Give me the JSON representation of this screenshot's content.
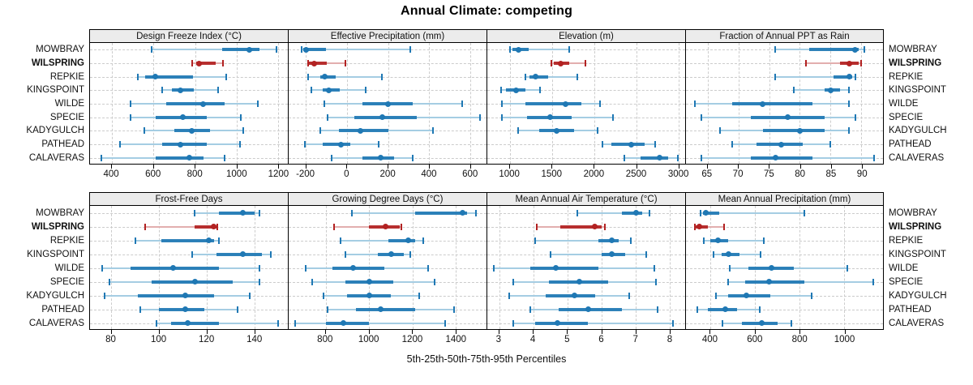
{
  "title": "Annual Climate: competing",
  "footer": "5th-25th-50th-75th-95th Percentiles",
  "colors": {
    "blue": "#1f78b4",
    "blue_light": "#a5cde3",
    "red": "#b22222",
    "red_light": "#e2aeae",
    "strip_bg": "#ececec",
    "grid": "#cccccc",
    "border": "#000000"
  },
  "chart_data": {
    "type": "dotplot-percentiles",
    "percentile_labels": [
      "5th",
      "25th",
      "50th",
      "75th",
      "95th"
    ],
    "sites": [
      "MOWBRAY",
      "WILSPRING",
      "REPKIE",
      "KINGSPOINT",
      "WILDE",
      "SPECIE",
      "KADYGULCH",
      "PATHEAD",
      "CALAVERAS"
    ],
    "highlight_site": "WILSPRING",
    "grid_layout": {
      "rows": 2,
      "cols": 4,
      "legend": "none",
      "gridlines": "dashed"
    },
    "panels": [
      {
        "title": "Design Freeze Index (°C)",
        "xlim": [
          295,
          1245
        ],
        "ticks": [
          400,
          600,
          800,
          1000,
          1200
        ],
        "values": {
          "MOWBRAY": [
            590,
            930,
            1060,
            1110,
            1190
          ],
          "WILSPRING": [
            785,
            805,
            818,
            900,
            935
          ],
          "REPKIE": [
            525,
            560,
            610,
            790,
            950
          ],
          "KINGSPOINT": [
            640,
            690,
            730,
            795,
            910
          ],
          "WILDE": [
            490,
            660,
            840,
            940,
            1100
          ],
          "SPECIE": [
            490,
            610,
            740,
            855,
            1020
          ],
          "KADYGULCH": [
            555,
            700,
            785,
            870,
            1030
          ],
          "PATHEAD": [
            440,
            640,
            730,
            855,
            1015
          ],
          "CALAVERAS": [
            350,
            610,
            770,
            840,
            940
          ]
        }
      },
      {
        "title": "Effective Precipitation (mm)",
        "xlim": [
          -285,
          680
        ],
        "ticks": [
          -200,
          0,
          200,
          400,
          600
        ],
        "values": {
          "MOWBRAY": [
            -220,
            -215,
            -200,
            -105,
            310
          ],
          "WILSPRING": [
            -190,
            -185,
            -160,
            -100,
            -10
          ],
          "REPKIE": [
            -190,
            -130,
            -110,
            -55,
            170
          ],
          "KINGSPOINT": [
            -175,
            -120,
            -90,
            -35,
            90
          ],
          "WILDE": [
            -110,
            75,
            200,
            320,
            560
          ],
          "SPECIE": [
            -95,
            35,
            170,
            340,
            650
          ],
          "KADYGULCH": [
            -130,
            -40,
            65,
            200,
            420
          ],
          "PATHEAD": [
            -205,
            -120,
            -30,
            15,
            155
          ],
          "CALAVERAS": [
            -75,
            75,
            165,
            230,
            320
          ]
        }
      },
      {
        "title": "Elevation (m)",
        "xlim": [
          730,
          3080
        ],
        "ticks": [
          1000,
          1500,
          2000,
          2500,
          3000
        ],
        "values": {
          "MOWBRAY": [
            1000,
            1030,
            1100,
            1220,
            1700
          ],
          "WILSPRING": [
            1490,
            1520,
            1600,
            1700,
            1900
          ],
          "REPKIE": [
            1180,
            1230,
            1300,
            1450,
            1800
          ],
          "KINGSPOINT": [
            890,
            950,
            1070,
            1180,
            1360
          ],
          "WILDE": [
            900,
            1180,
            1660,
            1850,
            2070
          ],
          "SPECIE": [
            900,
            1200,
            1480,
            1730,
            2220
          ],
          "KADYGULCH": [
            1100,
            1350,
            1550,
            1760,
            2040
          ],
          "PATHEAD": [
            2100,
            2200,
            2440,
            2600,
            2720
          ],
          "CALAVERAS": [
            2360,
            2550,
            2780,
            2880,
            2990
          ]
        }
      },
      {
        "title": "Fraction of Annual PPT as Rain",
        "xlim": [
          61.5,
          93.5
        ],
        "ticks": [
          65,
          70,
          75,
          80,
          85,
          90
        ],
        "values": {
          "MOWBRAY": [
            76,
            81.5,
            89,
            89.5,
            90.5
          ],
          "WILSPRING": [
            81,
            86.5,
            88,
            89.5,
            90
          ],
          "REPKIE": [
            76,
            85.5,
            88,
            88.5,
            89
          ],
          "KINGSPOINT": [
            79,
            84,
            85,
            86.5,
            88
          ],
          "WILDE": [
            63,
            69,
            74,
            82,
            88
          ],
          "SPECIE": [
            64,
            72,
            78,
            84,
            89
          ],
          "KADYGULCH": [
            67,
            74,
            80,
            84,
            88
          ],
          "PATHEAD": [
            69,
            73,
            77,
            80.5,
            85
          ],
          "CALAVERAS": [
            64,
            72,
            76,
            82,
            92
          ]
        }
      },
      {
        "title": "Frost-Free Days",
        "xlim": [
          71,
          154
        ],
        "ticks": [
          80,
          100,
          120,
          140
        ],
        "values": {
          "MOWBRAY": [
            115,
            125,
            135,
            140,
            142
          ],
          "WILSPRING": [
            94,
            115,
            123,
            124,
            124.5
          ],
          "REPKIE": [
            90,
            101,
            121,
            123,
            125
          ],
          "KINGSPOINT": [
            114,
            124,
            135,
            143,
            147
          ],
          "WILDE": [
            76,
            88,
            106,
            125,
            142
          ],
          "SPECIE": [
            79,
            97,
            115,
            131,
            142
          ],
          "KADYGULCH": [
            77,
            91,
            111,
            123,
            138
          ],
          "PATHEAD": [
            92,
            100,
            111,
            119,
            133
          ],
          "CALAVERAS": [
            99,
            105,
            112,
            125,
            150
          ]
        }
      },
      {
        "title": "Growing Degree Days (°C)",
        "xlim": [
          630,
          1540
        ],
        "ticks": [
          800,
          1000,
          1200,
          1400
        ],
        "values": {
          "MOWBRAY": [
            920,
            1210,
            1430,
            1450,
            1490
          ],
          "WILSPRING": [
            840,
            1000,
            1075,
            1140,
            1150
          ],
          "REPKIE": [
            870,
            1090,
            1180,
            1210,
            1250
          ],
          "KINGSPOINT": [
            890,
            1040,
            1100,
            1160,
            1190
          ],
          "WILDE": [
            710,
            830,
            925,
            1070,
            1270
          ],
          "SPECIE": [
            740,
            890,
            1000,
            1110,
            1300
          ],
          "KADYGULCH": [
            790,
            900,
            1000,
            1100,
            1230
          ],
          "PATHEAD": [
            810,
            940,
            1055,
            1210,
            1390
          ],
          "CALAVERAS": [
            660,
            800,
            880,
            1000,
            1350
          ]
        }
      },
      {
        "title": "Mean Annual Air Temperature (°C)",
        "xlim": [
          2.65,
          8.45
        ],
        "ticks": [
          3,
          4,
          5,
          6,
          7,
          8
        ],
        "values": {
          "MOWBRAY": [
            5.3,
            6.6,
            7.0,
            7.2,
            7.4
          ],
          "WILSPRING": [
            4.1,
            4.8,
            5.8,
            6.0,
            6.1
          ],
          "REPKIE": [
            4.05,
            5.9,
            6.3,
            6.5,
            6.85
          ],
          "KINGSPOINT": [
            4.5,
            6.0,
            6.3,
            6.7,
            7.3
          ],
          "WILDE": [
            2.85,
            3.9,
            4.65,
            5.9,
            7.55
          ],
          "SPECIE": [
            3.4,
            4.45,
            5.35,
            6.2,
            7.6
          ],
          "KADYGULCH": [
            3.3,
            4.35,
            5.2,
            5.8,
            6.8
          ],
          "PATHEAD": [
            3.9,
            4.75,
            5.6,
            6.6,
            7.65
          ],
          "CALAVERAS": [
            3.4,
            4.05,
            4.7,
            5.6,
            8.1
          ]
        }
      },
      {
        "title": "Mean Annual Precipitation (mm)",
        "xlim": [
          290,
          1175
        ],
        "ticks": [
          400,
          600,
          800,
          1000
        ],
        "values": {
          "MOWBRAY": [
            355,
            365,
            380,
            440,
            820
          ],
          "WILSPRING": [
            330,
            335,
            350,
            390,
            460
          ],
          "REPKIE": [
            370,
            400,
            435,
            480,
            640
          ],
          "KINGSPOINT": [
            415,
            450,
            480,
            530,
            625
          ],
          "WILDE": [
            485,
            570,
            675,
            775,
            1015
          ],
          "SPECIE": [
            480,
            555,
            665,
            820,
            1130
          ],
          "KADYGULCH": [
            425,
            480,
            560,
            670,
            855
          ],
          "PATHEAD": [
            340,
            390,
            465,
            520,
            620
          ],
          "CALAVERAS": [
            455,
            540,
            630,
            700,
            765
          ]
        }
      }
    ]
  }
}
